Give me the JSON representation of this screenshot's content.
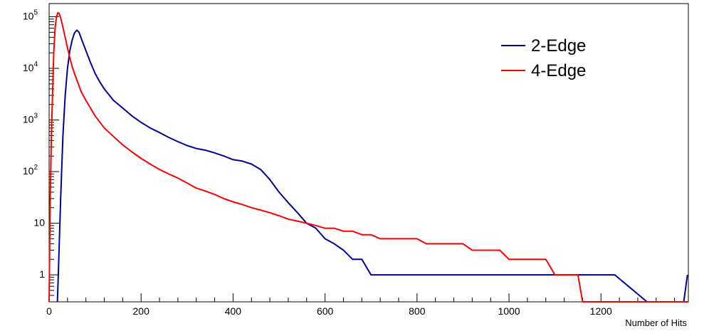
{
  "chart_data": {
    "type": "line",
    "title": "",
    "xlabel": "Number of Hits",
    "ylabel": "",
    "xlim": [
      0,
      1390
    ],
    "ylim": [
      0.3,
      180000
    ],
    "yscale": "log",
    "grid": false,
    "legend_position": "top-right",
    "x_ticks": [
      {
        "value": 0,
        "label": "0"
      },
      {
        "value": 200,
        "label": "200"
      },
      {
        "value": 400,
        "label": "400"
      },
      {
        "value": 600,
        "label": "600"
      },
      {
        "value": 800,
        "label": "800"
      },
      {
        "value": 1000,
        "label": "1000"
      },
      {
        "value": 1200,
        "label": "1200"
      }
    ],
    "y_ticks": [
      {
        "value": 1,
        "label": "1",
        "exp": ""
      },
      {
        "value": 10,
        "label": "10",
        "exp": ""
      },
      {
        "value": 100,
        "label": "10",
        "exp": "2"
      },
      {
        "value": 1000,
        "label": "10",
        "exp": "3"
      },
      {
        "value": 10000,
        "label": "10",
        "exp": "4"
      },
      {
        "value": 100000,
        "label": "10",
        "exp": "5"
      }
    ],
    "series": [
      {
        "name": "2-Edge",
        "color": "#000099",
        "x": [
          18,
          20,
          25,
          30,
          35,
          40,
          45,
          50,
          55,
          60,
          65,
          70,
          80,
          90,
          100,
          110,
          120,
          140,
          160,
          180,
          200,
          220,
          240,
          260,
          280,
          300,
          320,
          340,
          360,
          380,
          400,
          420,
          440,
          460,
          480,
          500,
          520,
          540,
          560,
          580,
          600,
          620,
          640,
          660,
          680,
          700,
          720,
          740,
          760,
          780,
          800,
          820,
          840,
          860,
          880,
          900,
          920,
          940,
          960,
          980,
          1000,
          1020,
          1040,
          1060,
          1080,
          1100,
          1120,
          1140,
          1160,
          1180,
          1200,
          1230,
          1300,
          1380,
          1388
        ],
        "y": [
          0.3,
          1,
          30,
          500,
          3000,
          10000,
          22000,
          35000,
          48000,
          55000,
          50000,
          38000,
          22000,
          13000,
          8000,
          5500,
          4000,
          2400,
          1700,
          1200,
          900,
          700,
          570,
          460,
          380,
          320,
          280,
          260,
          230,
          200,
          170,
          160,
          140,
          110,
          70,
          40,
          25,
          16,
          10,
          8,
          5,
          4,
          3,
          2,
          2,
          1,
          1,
          1,
          1,
          1,
          1,
          1,
          1,
          1,
          1,
          1,
          1,
          1,
          1,
          1,
          1,
          1,
          1,
          1,
          1,
          1,
          1,
          1,
          1,
          1,
          1,
          1,
          0.3,
          0.3,
          1
        ]
      },
      {
        "name": "4-Edge",
        "color": "#ff0000",
        "x": [
          0,
          2,
          5,
          8,
          10,
          13,
          16,
          19,
          22,
          25,
          28,
          32,
          36,
          40,
          45,
          50,
          55,
          60,
          70,
          80,
          90,
          100,
          120,
          140,
          160,
          180,
          200,
          220,
          240,
          260,
          280,
          300,
          320,
          340,
          360,
          380,
          400,
          420,
          440,
          460,
          480,
          500,
          520,
          540,
          560,
          580,
          600,
          620,
          640,
          660,
          680,
          700,
          720,
          740,
          760,
          780,
          800,
          820,
          840,
          860,
          880,
          900,
          920,
          940,
          960,
          980,
          1000,
          1020,
          1040,
          1060,
          1080,
          1100,
          1120,
          1140,
          1150,
          1160,
          1390
        ],
        "y": [
          0.3,
          20,
          500,
          5000,
          20000,
          60000,
          100000,
          120000,
          115000,
          95000,
          75000,
          52000,
          36000,
          25000,
          16000,
          11000,
          8000,
          6000,
          3500,
          2400,
          1700,
          1200,
          700,
          480,
          330,
          240,
          180,
          140,
          110,
          90,
          75,
          60,
          48,
          42,
          36,
          30,
          26,
          23,
          20,
          18,
          16,
          14,
          12,
          11,
          10,
          9,
          8,
          8,
          7,
          7,
          6,
          6,
          5,
          5,
          5,
          5,
          5,
          4,
          4,
          4,
          4,
          4,
          3,
          3,
          3,
          3,
          2,
          2,
          2,
          2,
          2,
          1,
          1,
          1,
          1,
          0.3,
          0.3
        ]
      }
    ]
  }
}
